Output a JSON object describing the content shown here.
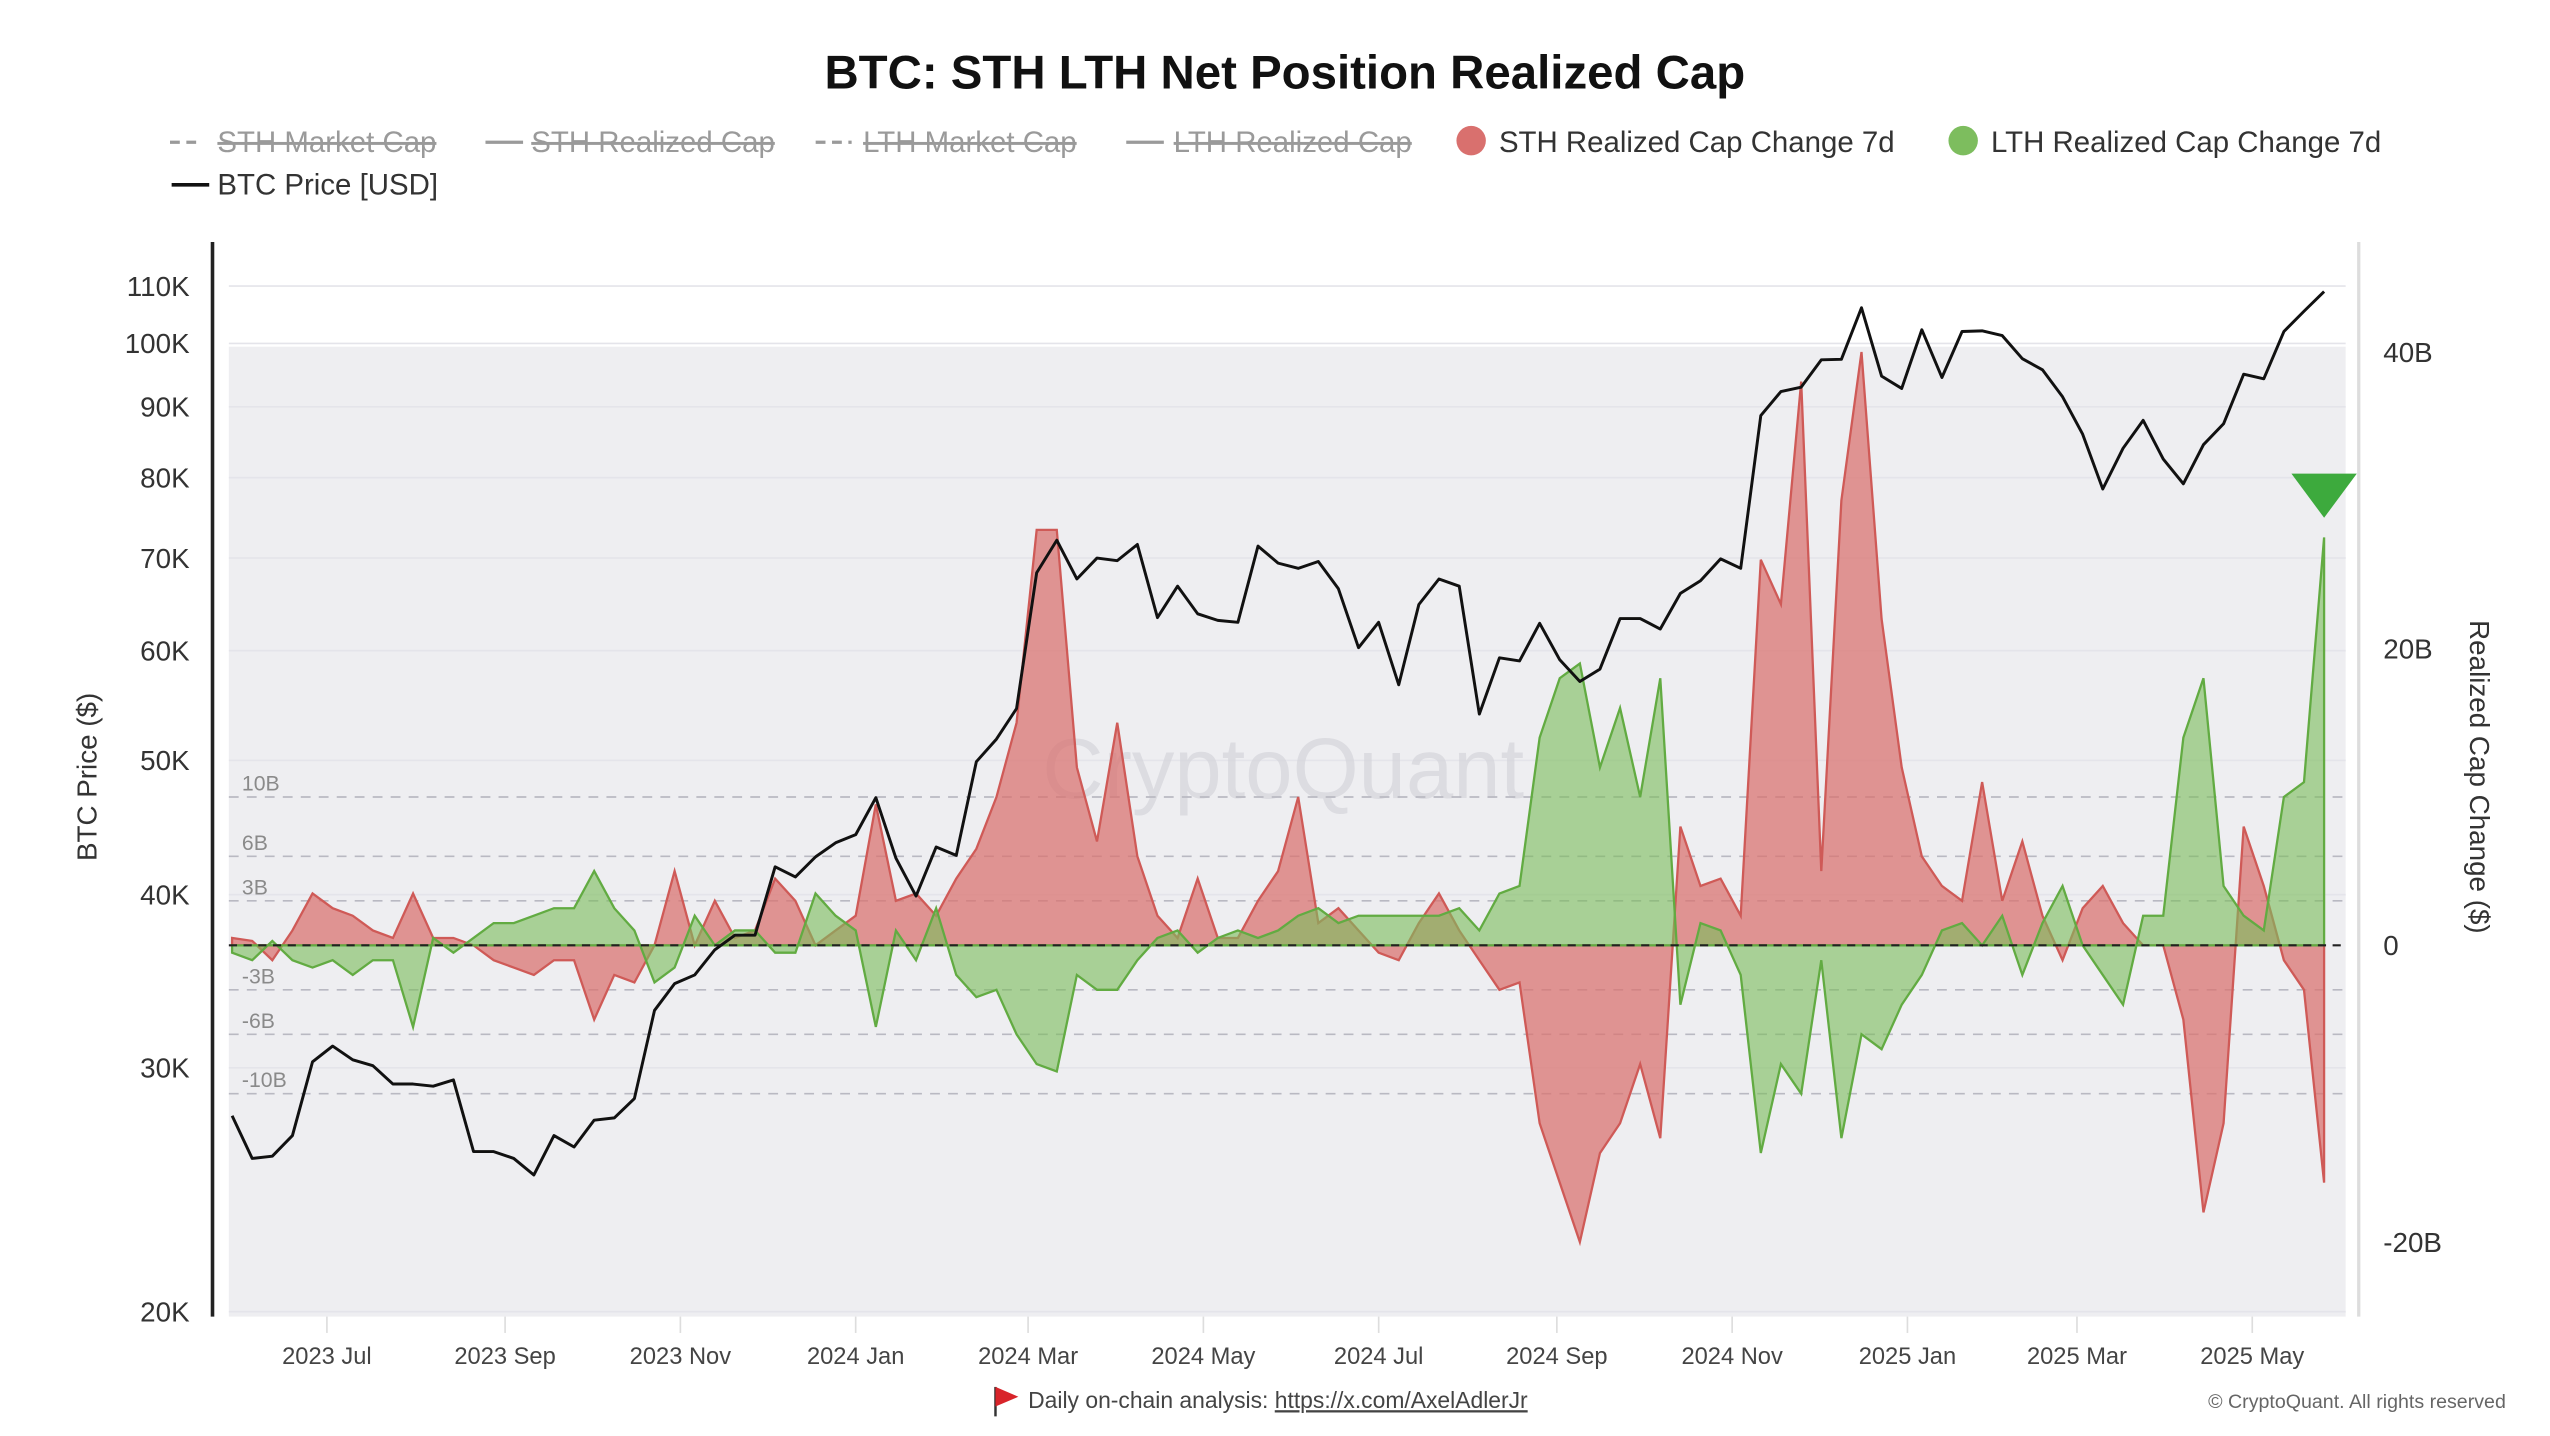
{
  "chart_data": {
    "type": "area",
    "title": "BTC: STH LTH Net Position Realized Cap",
    "legend": [
      {
        "name": "STH Market Cap",
        "hidden": true,
        "style": "dashed"
      },
      {
        "name": "STH Realized Cap",
        "hidden": true,
        "style": "solid"
      },
      {
        "name": "LTH Market Cap",
        "hidden": true,
        "style": "dashed"
      },
      {
        "name": "LTH Realized Cap",
        "hidden": true,
        "style": "solid"
      },
      {
        "name": "STH Realized Cap Change 7d",
        "hidden": false,
        "color": "#d9706e"
      },
      {
        "name": "LTH Realized Cap Change 7d",
        "hidden": false,
        "color": "#7dbd5e"
      },
      {
        "name": "BTC Price [USD]",
        "hidden": false,
        "color": "#111111"
      }
    ],
    "legend_placement": "top",
    "y_left": {
      "label": "BTC Price ($)",
      "scale": "log",
      "range": [
        20000,
        120000
      ],
      "ticks": [
        {
          "v": 20000,
          "t": "20K"
        },
        {
          "v": 30000,
          "t": "30K"
        },
        {
          "v": 40000,
          "t": "40K"
        },
        {
          "v": 50000,
          "t": "50K"
        },
        {
          "v": 60000,
          "t": "60K"
        },
        {
          "v": 70000,
          "t": "70K"
        },
        {
          "v": 80000,
          "t": "80K"
        },
        {
          "v": 90000,
          "t": "90K"
        },
        {
          "v": 100000,
          "t": "100K"
        },
        {
          "v": 110000,
          "t": "110K"
        }
      ]
    },
    "y_right": {
      "label": "Realized Cap Change ($)",
      "range": [
        -25,
        47
      ],
      "ticks": [
        {
          "v": -20,
          "t": "-20B"
        },
        {
          "v": 0,
          "t": "0"
        },
        {
          "v": 20,
          "t": "20B"
        },
        {
          "v": 40,
          "t": "40B"
        }
      ]
    },
    "reference_lines": [
      {
        "v": 10,
        "t": "10B"
      },
      {
        "v": 6,
        "t": "6B"
      },
      {
        "v": 3,
        "t": "3B"
      },
      {
        "v": -3,
        "t": "-3B"
      },
      {
        "v": -6,
        "t": "-6B"
      },
      {
        "v": -10,
        "t": "-10B"
      }
    ],
    "x_ticks": [
      {
        "d": "2023-07-01",
        "t": "2023 Jul"
      },
      {
        "d": "2023-09-01",
        "t": "2023 Sep"
      },
      {
        "d": "2023-11-01",
        "t": "2023 Nov"
      },
      {
        "d": "2024-01-01",
        "t": "2024 Jan"
      },
      {
        "d": "2024-03-01",
        "t": "2024 Mar"
      },
      {
        "d": "2024-05-01",
        "t": "2024 May"
      },
      {
        "d": "2024-07-01",
        "t": "2024 Jul"
      },
      {
        "d": "2024-09-01",
        "t": "2024 Sep"
      },
      {
        "d": "2024-11-01",
        "t": "2024 Nov"
      },
      {
        "d": "2025-01-01",
        "t": "2025 Jan"
      },
      {
        "d": "2025-03-01",
        "t": "2025 Mar"
      },
      {
        "d": "2025-05-01",
        "t": "2025 May"
      }
    ],
    "grid": true,
    "x": [
      "2023-05-29",
      "2023-06-05",
      "2023-06-12",
      "2023-06-19",
      "2023-06-26",
      "2023-07-03",
      "2023-07-10",
      "2023-07-17",
      "2023-07-24",
      "2023-07-31",
      "2023-08-07",
      "2023-08-14",
      "2023-08-21",
      "2023-08-28",
      "2023-09-04",
      "2023-09-11",
      "2023-09-18",
      "2023-09-25",
      "2023-10-02",
      "2023-10-09",
      "2023-10-16",
      "2023-10-23",
      "2023-10-30",
      "2023-11-06",
      "2023-11-13",
      "2023-11-20",
      "2023-11-27",
      "2023-12-04",
      "2023-12-11",
      "2023-12-18",
      "2023-12-25",
      "2024-01-01",
      "2024-01-08",
      "2024-01-15",
      "2024-01-22",
      "2024-01-29",
      "2024-02-05",
      "2024-02-12",
      "2024-02-19",
      "2024-02-26",
      "2024-03-04",
      "2024-03-11",
      "2024-03-18",
      "2024-03-25",
      "2024-04-01",
      "2024-04-08",
      "2024-04-15",
      "2024-04-22",
      "2024-04-29",
      "2024-05-06",
      "2024-05-13",
      "2024-05-20",
      "2024-05-27",
      "2024-06-03",
      "2024-06-10",
      "2024-06-17",
      "2024-06-24",
      "2024-07-01",
      "2024-07-08",
      "2024-07-15",
      "2024-07-22",
      "2024-07-29",
      "2024-08-05",
      "2024-08-12",
      "2024-08-19",
      "2024-08-26",
      "2024-09-02",
      "2024-09-09",
      "2024-09-16",
      "2024-09-23",
      "2024-09-30",
      "2024-10-07",
      "2024-10-14",
      "2024-10-21",
      "2024-10-28",
      "2024-11-04",
      "2024-11-11",
      "2024-11-18",
      "2024-11-25",
      "2024-12-02",
      "2024-12-09",
      "2024-12-16",
      "2024-12-23",
      "2024-12-30",
      "2025-01-06",
      "2025-01-13",
      "2025-01-20",
      "2025-01-27",
      "2025-02-03",
      "2025-02-10",
      "2025-02-17",
      "2025-02-24",
      "2025-03-03",
      "2025-03-10",
      "2025-03-17",
      "2025-03-24",
      "2025-03-31",
      "2025-04-07",
      "2025-04-14",
      "2025-04-21",
      "2025-04-28",
      "2025-05-05",
      "2025-05-12",
      "2025-05-19",
      "2025-05-26"
    ],
    "series": [
      {
        "name": "STH Realized Cap Change 7d",
        "axis": "right",
        "unit": "B USD",
        "values": [
          0.5,
          0.3,
          -1,
          1,
          3.5,
          2.5,
          2,
          1,
          0.5,
          3.5,
          0.5,
          0.5,
          0,
          -1,
          -1.5,
          -2,
          -1,
          -1,
          -5,
          -2,
          -2.5,
          0,
          5,
          0,
          3,
          0.5,
          1,
          4.5,
          3,
          0,
          1,
          2,
          9.5,
          3,
          3.5,
          2,
          4.5,
          6.5,
          10,
          15,
          28,
          28,
          12,
          7,
          15,
          6,
          2,
          0.5,
          4.5,
          0.5,
          0.5,
          3,
          5,
          10,
          1.5,
          2.5,
          1,
          -0.5,
          -1,
          1.5,
          3.5,
          1,
          -1,
          -3,
          -2.5,
          -12,
          -16,
          -20,
          -14,
          -12,
          -8,
          -13,
          8,
          4,
          4.5,
          2,
          26,
          23,
          38,
          5,
          30,
          40,
          22,
          12,
          6,
          4,
          3,
          11,
          3,
          7,
          2,
          -1,
          2.5,
          4,
          1.5,
          0,
          0,
          -5,
          -18,
          -12,
          8,
          4,
          -1,
          -3,
          -16
        ]
      },
      {
        "name": "LTH Realized Cap Change 7d",
        "axis": "right",
        "unit": "B USD",
        "values": [
          -0.5,
          -1,
          0.3,
          -1,
          -1.5,
          -1,
          -2,
          -1,
          -1,
          -5.5,
          0.5,
          -0.5,
          0.5,
          1.5,
          1.5,
          2,
          2.5,
          2.5,
          5,
          2.5,
          1,
          -2.5,
          -1.5,
          2,
          0,
          1,
          1,
          -0.5,
          -0.5,
          3.5,
          2,
          1,
          -5.5,
          1,
          -1,
          2.5,
          -2,
          -3.5,
          -3,
          -6,
          -8,
          -8.5,
          -2,
          -3,
          -3,
          -1,
          0.5,
          1,
          -0.5,
          0.5,
          1,
          0.5,
          1,
          2,
          2.5,
          1.5,
          2,
          2,
          2,
          2,
          2,
          2.5,
          1,
          3.5,
          4,
          14,
          18,
          19,
          12,
          16,
          10,
          18,
          -4,
          1.5,
          1,
          -2,
          -14,
          -8,
          -10,
          -1,
          -13,
          -6,
          -7,
          -4,
          -2,
          1,
          1.5,
          0,
          2,
          -2,
          1.5,
          4,
          0,
          -2,
          -4,
          2,
          2,
          14,
          18,
          4,
          2,
          1,
          10,
          11,
          27.5
        ]
      },
      {
        "name": "BTC Price [USD]",
        "axis": "left",
        "unit": "USD",
        "values": [
          27700,
          25800,
          25900,
          26800,
          30300,
          31100,
          30400,
          30100,
          29200,
          29200,
          29100,
          29400,
          26100,
          26100,
          25800,
          25100,
          26800,
          26300,
          27500,
          27600,
          28500,
          33000,
          34500,
          35000,
          36500,
          37400,
          37400,
          41900,
          41200,
          42600,
          43600,
          44200,
          47000,
          42500,
          39900,
          43300,
          42700,
          49900,
          51800,
          54500,
          68300,
          72100,
          67600,
          70000,
          69700,
          71600,
          63400,
          66800,
          63800,
          63100,
          62900,
          71400,
          69400,
          68800,
          69600,
          66500,
          60300,
          62900,
          56700,
          64800,
          67600,
          66800,
          54000,
          59300,
          59000,
          62800,
          59100,
          57000,
          58200,
          63300,
          63300,
          62200,
          66000,
          67400,
          69900,
          68800,
          88700,
          92300,
          93000,
          97300,
          97400,
          106100,
          94700,
          92800,
          102300,
          94500,
          102000,
          102100,
          101300,
          97500,
          95700,
          91500,
          86000,
          78500,
          84000,
          88000,
          82500,
          79200,
          84500,
          87500,
          95000,
          94300,
          102000,
          105500,
          109000
        ]
      }
    ],
    "annotations": [
      {
        "type": "triangle-down-marker",
        "series": "LTH Realized Cap Change 7d",
        "date": "2025-05-26",
        "color": "#3daa3d"
      }
    ]
  },
  "watermark": "CryptoQuant",
  "footer": {
    "flag_icon": "red-flag-icon",
    "text": "Daily on-chain analysis: ",
    "link": "https://x.com/AxelAdlerJr",
    "copyright": "© CryptoQuant. All rights reserved"
  }
}
